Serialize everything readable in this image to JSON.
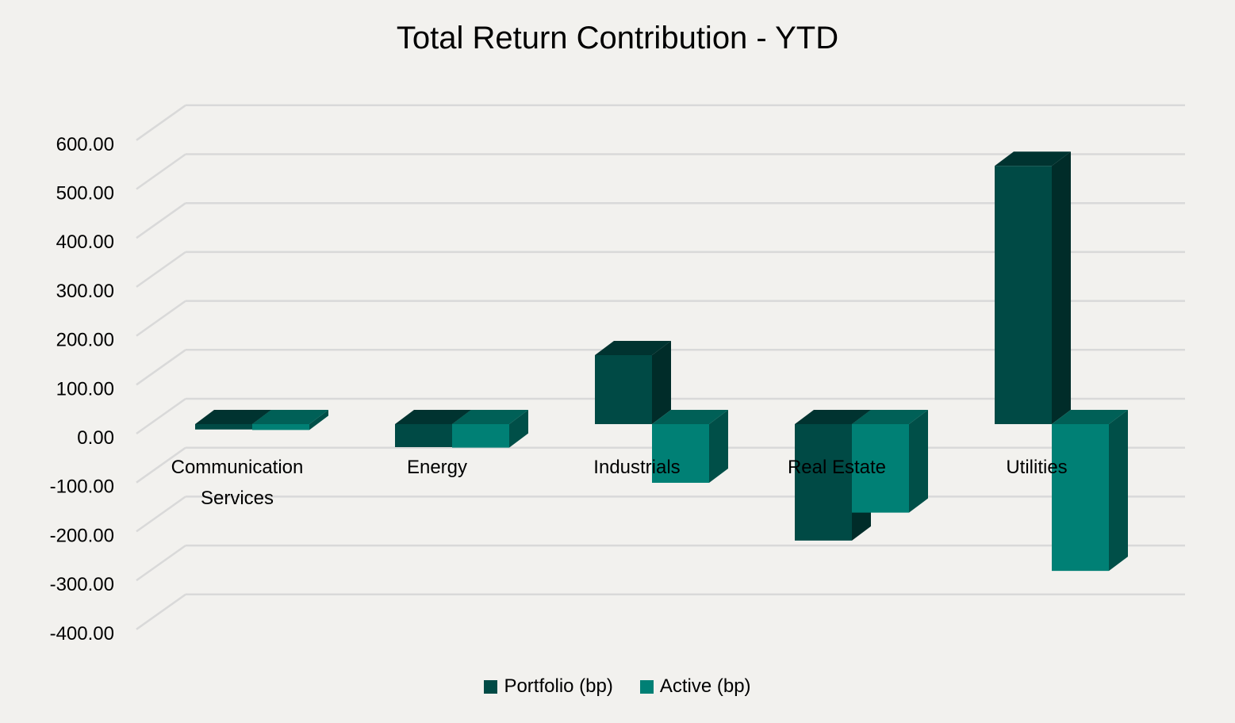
{
  "chart_data": {
    "type": "bar",
    "title": "Total Return Contribution - YTD",
    "categories": [
      [
        "Communication",
        "Services"
      ],
      [
        "Energy"
      ],
      [
        "Industrials"
      ],
      [
        "Real Estate"
      ],
      [
        "Utilities"
      ]
    ],
    "series": [
      {
        "name": "Portfolio (bp)",
        "color": "#004a45",
        "values": [
          -11,
          -47,
          141,
          -238,
          528
        ]
      },
      {
        "name": "Active (bp)",
        "color": "#008075",
        "values": [
          -12,
          -48,
          -120,
          -181,
          -300
        ]
      }
    ],
    "yticks": [
      "600.00",
      "500.00",
      "400.00",
      "300.00",
      "200.00",
      "100.00",
      "0.00",
      "-100.00",
      "-200.00",
      "-300.00",
      "-400.00"
    ],
    "ylim": [
      -400,
      600
    ],
    "grid": true,
    "legend": "bottom",
    "style": "3d-clustered-column"
  }
}
